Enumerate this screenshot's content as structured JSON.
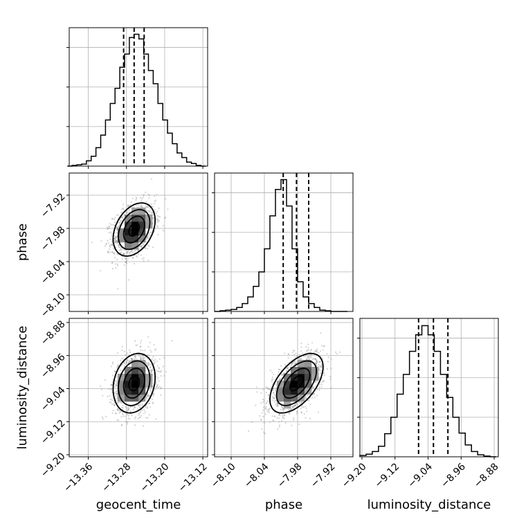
{
  "chart_data": {
    "type": "corner",
    "parameters": [
      "geocent_time",
      "phase",
      "luminosity_distance"
    ],
    "axes": {
      "geocent_time": {
        "label": "geocent_time",
        "range": [
          -13.4,
          -13.11
        ],
        "ticks": [
          -13.36,
          -13.28,
          -13.2,
          -13.12
        ],
        "tick_labels": [
          "−13.36",
          "−13.28",
          "−13.20",
          "−13.12"
        ]
      },
      "phase": {
        "label": "phase",
        "range": [
          -8.13,
          -7.88
        ],
        "ticks": [
          -8.1,
          -8.04,
          -7.98,
          -7.92
        ],
        "tick_labels": [
          "−8.10",
          "−8.04",
          "−7.98",
          "−7.92"
        ]
      },
      "luminosity_distance": {
        "label": "luminosity_distance",
        "range": [
          -9.205,
          -8.87
        ],
        "ticks": [
          -9.2,
          -9.12,
          -9.04,
          -8.96,
          -8.88
        ],
        "tick_labels": [
          "−9.20",
          "−9.12",
          "−9.04",
          "−8.96",
          "−8.88"
        ]
      }
    },
    "marginals": {
      "geocent_time": {
        "median": -13.264,
        "quantile_16": -13.286,
        "quantile_84": -13.243,
        "bins": [
          -13.404,
          -13.394,
          -13.384,
          -13.374,
          -13.364,
          -13.354,
          -13.344,
          -13.334,
          -13.324,
          -13.314,
          -13.304,
          -13.294,
          -13.284,
          -13.274,
          -13.264,
          -13.254,
          -13.244,
          -13.234,
          -13.224,
          -13.214,
          -13.204,
          -13.194,
          -13.184,
          -13.174,
          -13.164,
          -13.154,
          -13.144,
          -13.134,
          -13.124,
          -13.114
        ],
        "counts": [
          0,
          1,
          2,
          3,
          8,
          15,
          28,
          47,
          70,
          95,
          118,
          150,
          170,
          195,
          200,
          193,
          170,
          145,
          125,
          95,
          70,
          50,
          34,
          20,
          13,
          6,
          4,
          1,
          0
        ],
        "ylim": [
          0,
          210
        ]
      },
      "phase": {
        "median": -7.982,
        "quantile_16": -8.006,
        "quantile_84": -7.96,
        "bins": [
          -8.13,
          -8.12,
          -8.11,
          -8.1,
          -8.09,
          -8.08,
          -8.07,
          -8.06,
          -8.05,
          -8.04,
          -8.03,
          -8.02,
          -8.01,
          -8.0,
          -7.99,
          -7.98,
          -7.97,
          -7.96,
          -7.95,
          -7.94,
          -7.93,
          -7.92,
          -7.91,
          -7.9,
          -7.89
        ],
        "counts": [
          0,
          1,
          2,
          3,
          6,
          12,
          22,
          38,
          60,
          95,
          145,
          185,
          200,
          160,
          95,
          45,
          22,
          12,
          6,
          2,
          1,
          0,
          0,
          0
        ],
        "ylim": [
          0,
          210
        ]
      },
      "luminosity_distance": {
        "median": -9.027,
        "quantile_16": -9.063,
        "quantile_84": -8.992,
        "bins": [
          -9.205,
          -9.19,
          -9.175,
          -9.16,
          -9.145,
          -9.13,
          -9.115,
          -9.1,
          -9.085,
          -9.07,
          -9.055,
          -9.04,
          -9.025,
          -9.01,
          -8.995,
          -8.98,
          -8.965,
          -8.95,
          -8.935,
          -8.92,
          -8.905,
          -8.89,
          -8.875
        ],
        "counts": [
          2,
          4,
          8,
          16,
          35,
          60,
          95,
          125,
          160,
          185,
          199,
          185,
          160,
          125,
          90,
          60,
          36,
          18,
          8,
          3,
          1,
          0
        ],
        "ylim": [
          0,
          210
        ]
      }
    },
    "pairs": [
      {
        "x": "geocent_time",
        "y": "phase",
        "center": [
          -13.264,
          -7.982
        ],
        "sigma": [
          0.022,
          0.024
        ],
        "rho": 0.35
      },
      {
        "x": "geocent_time",
        "y": "luminosity_distance",
        "center": [
          -13.264,
          -9.027
        ],
        "sigma": [
          0.022,
          0.036
        ],
        "rho": 0.2
      },
      {
        "x": "phase",
        "y": "luminosity_distance",
        "center": [
          -7.982,
          -9.027
        ],
        "sigma": [
          0.024,
          0.036
        ],
        "rho": 0.55
      }
    ],
    "contour_levels_sigma": [
      0.5,
      1.0,
      1.5,
      2.0
    ],
    "grid": true,
    "colors": {
      "hist": "#000000",
      "scatter": "#808080",
      "grid": "#b0b0b0"
    }
  }
}
